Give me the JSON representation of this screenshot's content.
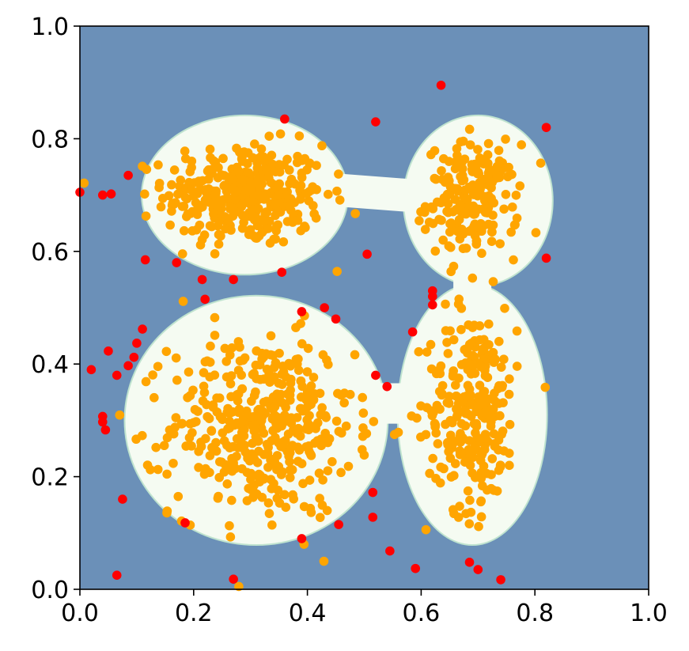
{
  "chart_data": {
    "type": "scatter",
    "title": "",
    "xlabel": "",
    "ylabel": "",
    "xlim": [
      0,
      1
    ],
    "ylim": [
      0,
      1
    ],
    "grid": false,
    "legend": "none",
    "x_ticks": [
      "0.0",
      "0.2",
      "0.4",
      "0.6",
      "0.8",
      "1.0"
    ],
    "y_ticks": [
      "0.0",
      "0.2",
      "0.4",
      "0.6",
      "0.8",
      "1.0"
    ],
    "background_region_color": "#6b90b8",
    "decision_region_color": "#f5fbf2",
    "decision_region_border_color": "#bfe3cf",
    "decision_regions": [
      {
        "name": "top-left cluster region",
        "cx": 0.29,
        "cy": 0.7,
        "rx": 0.18,
        "ry": 0.14
      },
      {
        "name": "top-right cluster region",
        "cx": 0.7,
        "cy": 0.69,
        "rx": 0.13,
        "ry": 0.15
      },
      {
        "name": "bottom-left cluster region",
        "cx": 0.31,
        "cy": 0.3,
        "rx": 0.23,
        "ry": 0.22
      },
      {
        "name": "bottom-right cluster region",
        "cx": 0.69,
        "cy": 0.31,
        "rx": 0.13,
        "ry": 0.23
      }
    ],
    "series": [
      {
        "color": "#ffa500",
        "clusters": [
          {
            "cx": 0.29,
            "cy": 0.7,
            "sx": 0.07,
            "sy": 0.045,
            "n": 360
          },
          {
            "cx": 0.69,
            "cy": 0.69,
            "sx": 0.04,
            "sy": 0.05,
            "n": 200
          },
          {
            "cx": 0.32,
            "cy": 0.29,
            "sx": 0.08,
            "sy": 0.08,
            "n": 430
          },
          {
            "cx": 0.69,
            "cy": 0.32,
            "sx": 0.04,
            "sy": 0.09,
            "n": 260
          }
        ]
      },
      {
        "color": "#ff0000",
        "points": [
          [
            0.0,
            0.705
          ],
          [
            0.04,
            0.7
          ],
          [
            0.055,
            0.702
          ],
          [
            0.085,
            0.735
          ],
          [
            0.115,
            0.585
          ],
          [
            0.17,
            0.58
          ],
          [
            0.215,
            0.55
          ],
          [
            0.22,
            0.515
          ],
          [
            0.27,
            0.55
          ],
          [
            0.36,
            0.835
          ],
          [
            0.355,
            0.563
          ],
          [
            0.52,
            0.83
          ],
          [
            0.505,
            0.595
          ],
          [
            0.635,
            0.895
          ],
          [
            0.82,
            0.82
          ],
          [
            0.82,
            0.588
          ],
          [
            0.62,
            0.53
          ],
          [
            0.62,
            0.52
          ],
          [
            0.62,
            0.505
          ],
          [
            0.585,
            0.457
          ],
          [
            0.39,
            0.493
          ],
          [
            0.43,
            0.5
          ],
          [
            0.45,
            0.48
          ],
          [
            0.11,
            0.462
          ],
          [
            0.1,
            0.437
          ],
          [
            0.05,
            0.423
          ],
          [
            0.095,
            0.412
          ],
          [
            0.085,
            0.397
          ],
          [
            0.065,
            0.38
          ],
          [
            0.02,
            0.39
          ],
          [
            0.52,
            0.38
          ],
          [
            0.54,
            0.36
          ],
          [
            0.04,
            0.307
          ],
          [
            0.04,
            0.297
          ],
          [
            0.045,
            0.283
          ],
          [
            0.075,
            0.16
          ],
          [
            0.185,
            0.118
          ],
          [
            0.065,
            0.025
          ],
          [
            0.27,
            0.018
          ],
          [
            0.39,
            0.09
          ],
          [
            0.455,
            0.115
          ],
          [
            0.515,
            0.172
          ],
          [
            0.515,
            0.128
          ],
          [
            0.545,
            0.068
          ],
          [
            0.59,
            0.037
          ],
          [
            0.685,
            0.048
          ],
          [
            0.7,
            0.035
          ],
          [
            0.74,
            0.017
          ]
        ]
      }
    ]
  }
}
